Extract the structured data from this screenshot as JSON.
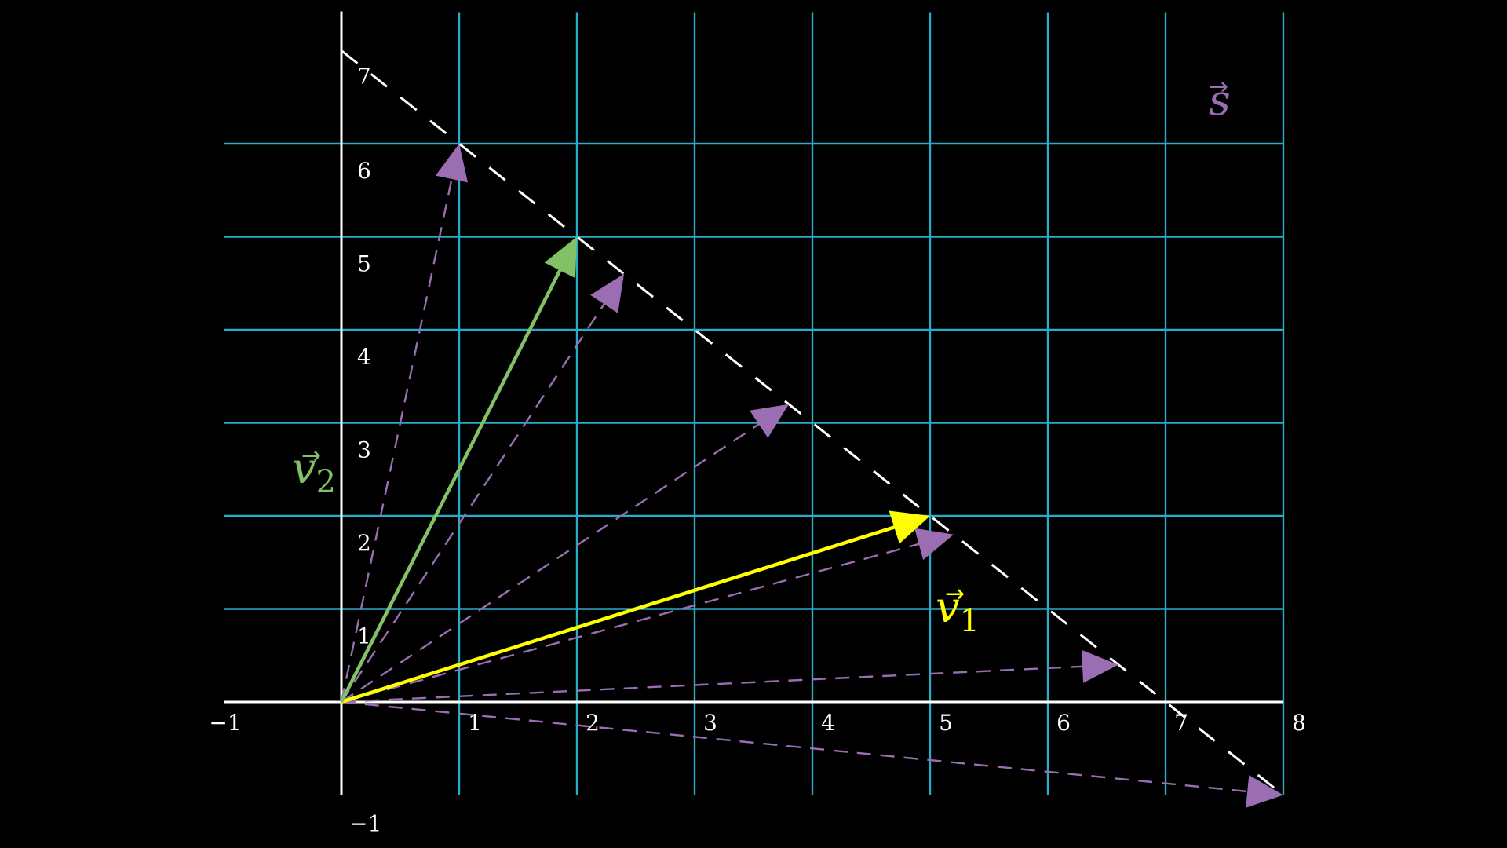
{
  "diagram": {
    "title": "",
    "x_ticks": [
      "−1",
      "1",
      "2",
      "3",
      "4",
      "5",
      "6",
      "7",
      "8"
    ],
    "y_ticks": [
      "−1",
      "1",
      "2",
      "3",
      "4",
      "5",
      "6",
      "7"
    ],
    "grid": {
      "x_range": [
        -1,
        8
      ],
      "y_range": [
        -1,
        7
      ]
    },
    "colors": {
      "background": "#000000",
      "grid": "#29abca",
      "axis": "#ffffff",
      "v1": "#ffff00",
      "v2": "#83c167",
      "s": "#9b6eb3",
      "line": "#ffffff"
    },
    "line_s": {
      "from": [
        0,
        7
      ],
      "to": [
        8,
        -1
      ],
      "label": "s"
    },
    "vectors": [
      {
        "name": "v1",
        "label": "v",
        "subscript": "1",
        "to": [
          5,
          2
        ]
      },
      {
        "name": "v2",
        "label": "v",
        "subscript": "2",
        "to": [
          2,
          5
        ]
      }
    ],
    "dashed_vectors": [
      [
        1,
        6
      ],
      [
        2.4,
        4.6
      ],
      [
        3.8,
        3.2
      ],
      [
        5.2,
        1.8
      ],
      [
        6.6,
        0.4
      ],
      [
        8,
        -1
      ]
    ]
  }
}
